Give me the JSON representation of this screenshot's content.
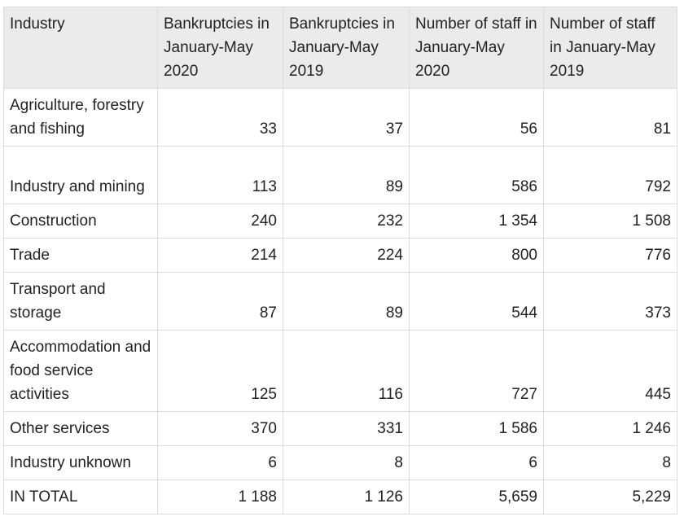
{
  "table": {
    "header": [
      "Industry",
      "Bankruptcies in January-May 2020",
      "Bankruptcies in January-May 2019",
      "Number of staff in January-May 2020",
      "Number of staff in January-May 2019"
    ],
    "rows": [
      [
        "Agriculture, forestry and fishing",
        "33",
        "37",
        "56",
        "81"
      ],
      [
        "Industry and mining",
        "113",
        "89",
        "586",
        "792"
      ],
      [
        "Construction",
        "240",
        "232",
        "1 354",
        "1 508"
      ],
      [
        "Trade",
        "214",
        "224",
        "800",
        "776"
      ],
      [
        "Transport and storage",
        "87",
        "89",
        "544",
        "373"
      ],
      [
        "Accommodation and food service activities",
        "125",
        "116",
        "727",
        "445"
      ],
      [
        "Other services",
        "370",
        "331",
        "1 586",
        "1 246"
      ],
      [
        "Industry unknown",
        "6",
        "8",
        "6",
        "8"
      ],
      [
        "IN TOTAL",
        "1 188",
        "1 126",
        "5,659",
        "5,229"
      ]
    ]
  }
}
